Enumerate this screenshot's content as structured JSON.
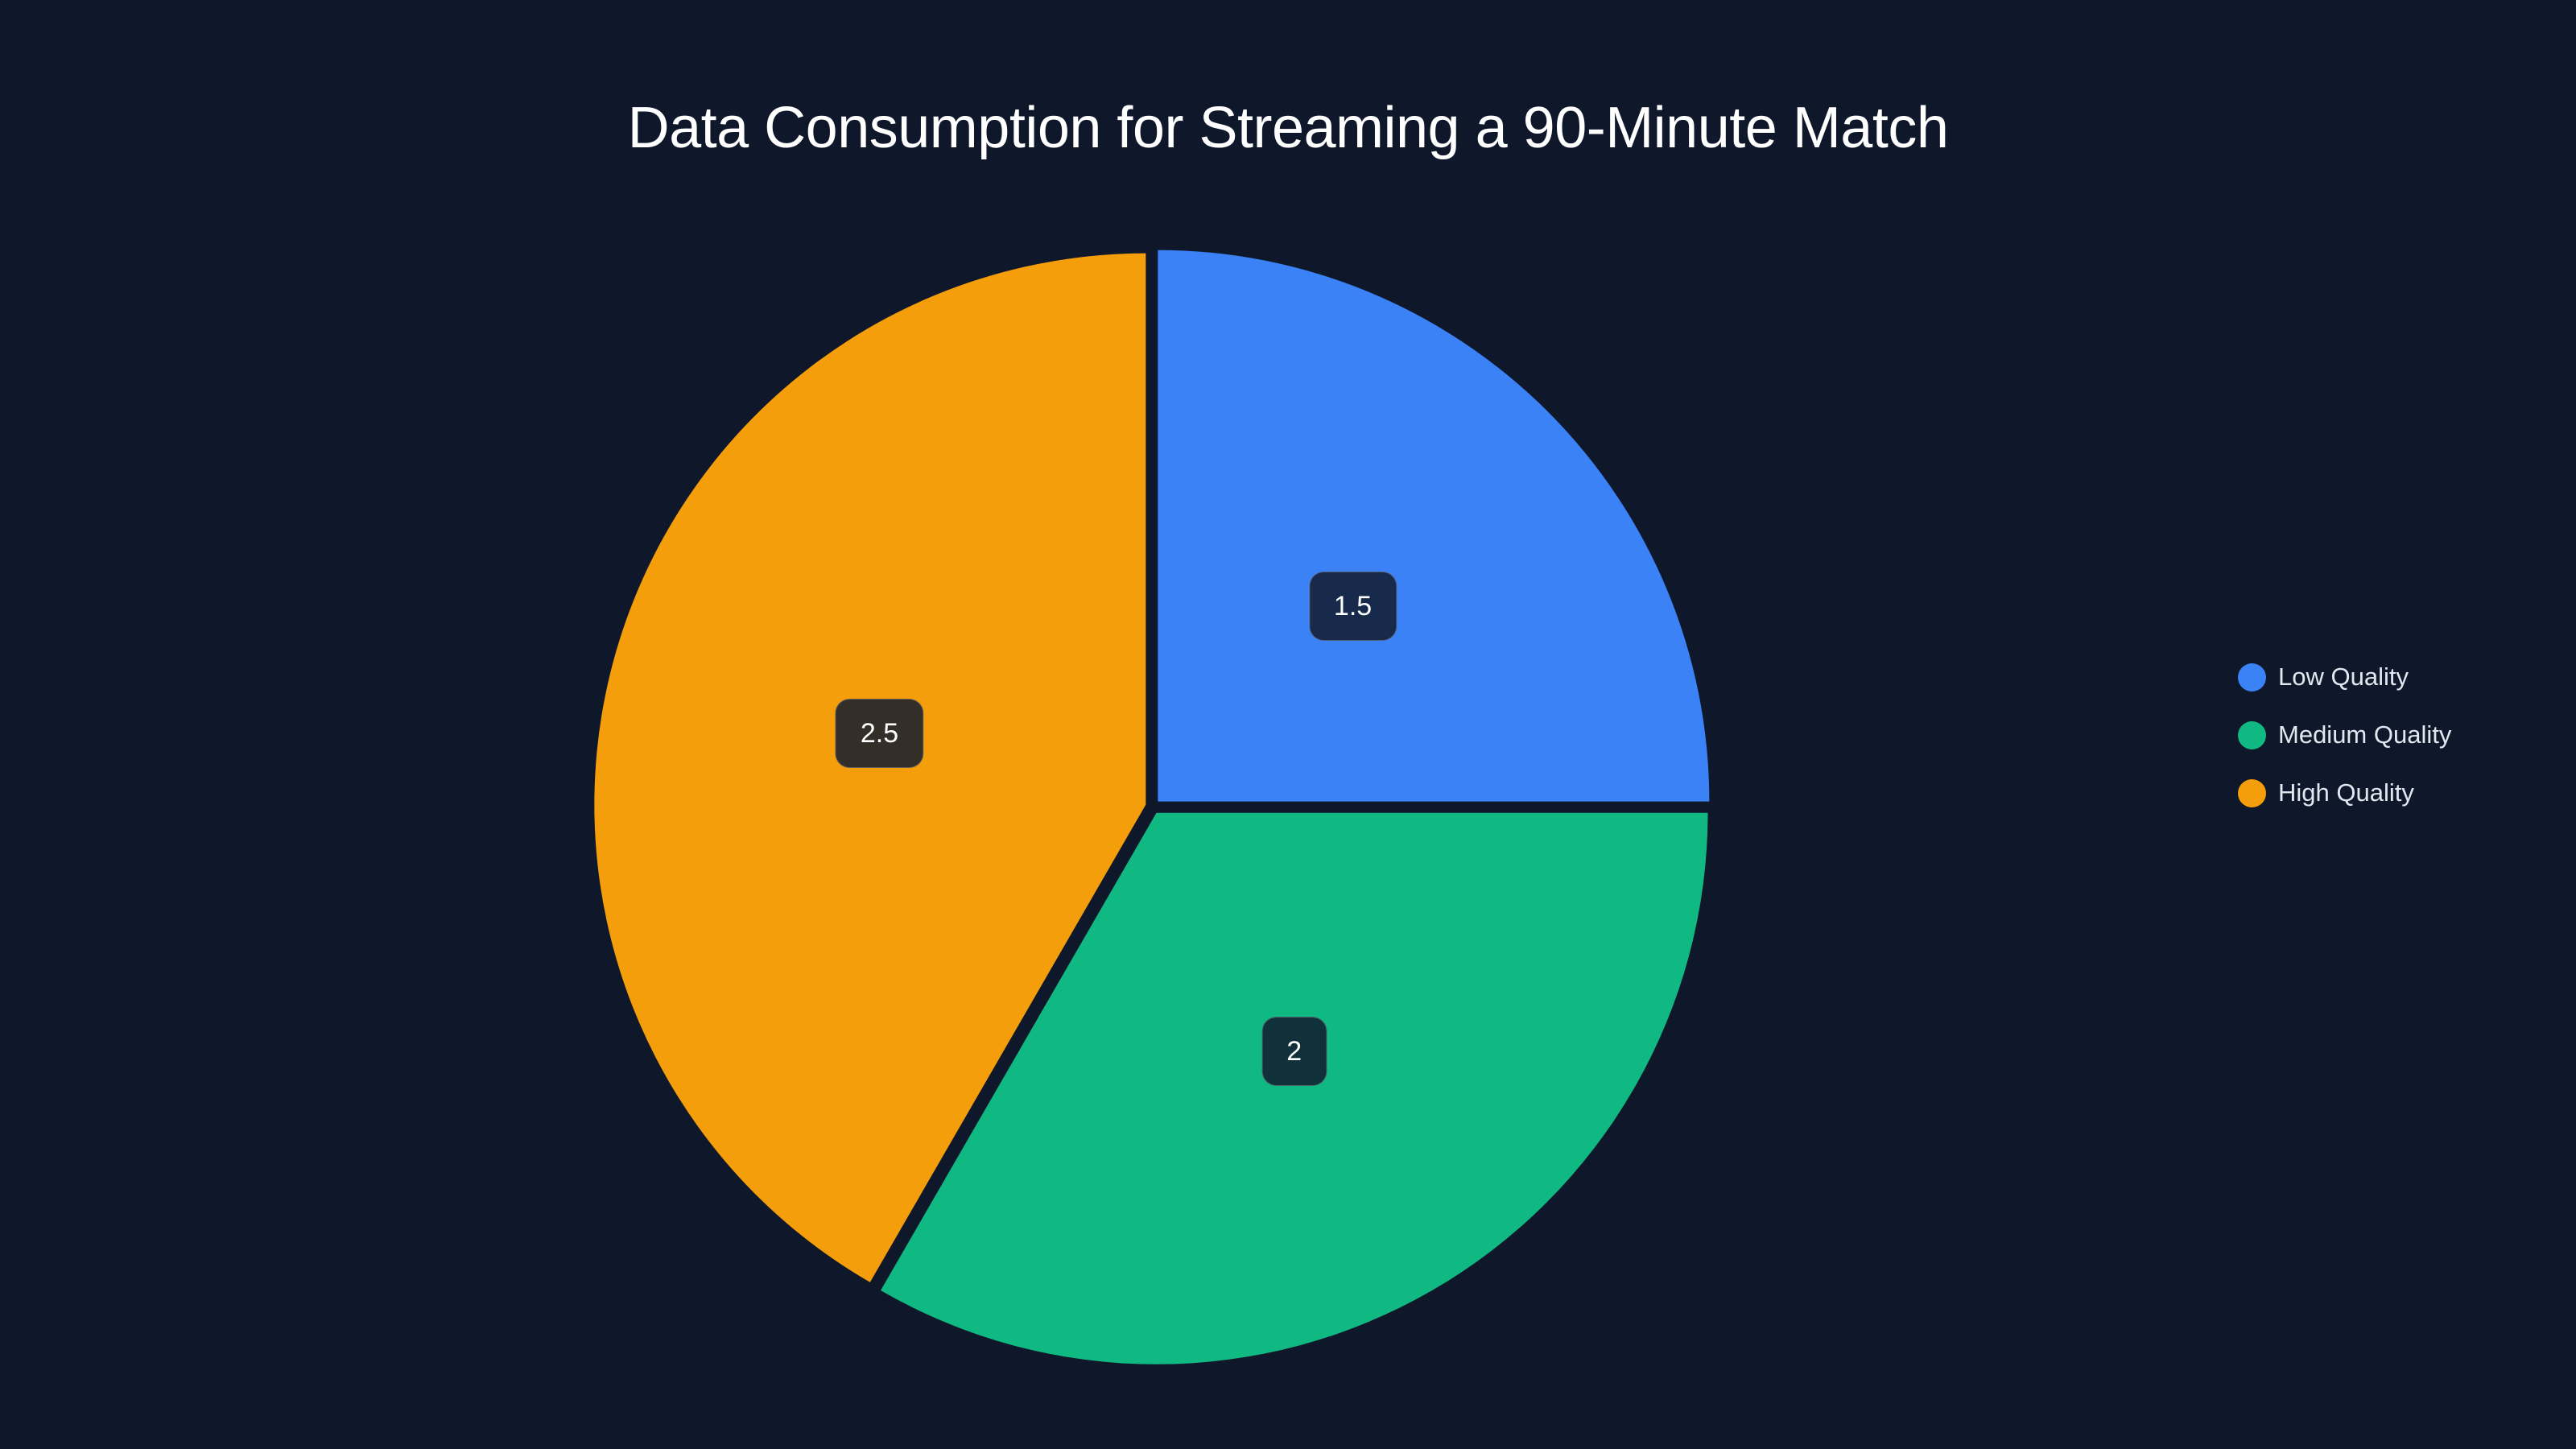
{
  "chart_data": {
    "type": "pie",
    "title": "Data Consumption for Streaming a 90-Minute Match",
    "categories": [
      "Low Quality",
      "Medium Quality",
      "High Quality"
    ],
    "values": [
      1.5,
      2,
      2.5
    ],
    "colors": [
      "#3b82f6",
      "#10b981",
      "#f59e0b"
    ],
    "label_backgrounds": [
      "#172a4b",
      "#10313a",
      "#332e28"
    ],
    "data_labels": [
      "1.5",
      "2",
      "2.5"
    ],
    "legend_position": "right",
    "start_angle_deg": 0,
    "direction": "clockwise",
    "xlabel": "",
    "ylabel": ""
  },
  "title": "Data Consumption for Streaming a 90-Minute Match",
  "legend": {
    "items": [
      {
        "label": "Low Quality",
        "color": "#3b82f6"
      },
      {
        "label": "Medium Quality",
        "color": "#10b981"
      },
      {
        "label": "High Quality",
        "color": "#f59e0b"
      }
    ]
  },
  "theme": {
    "background": "#0f172a",
    "text": "#ffffff"
  }
}
